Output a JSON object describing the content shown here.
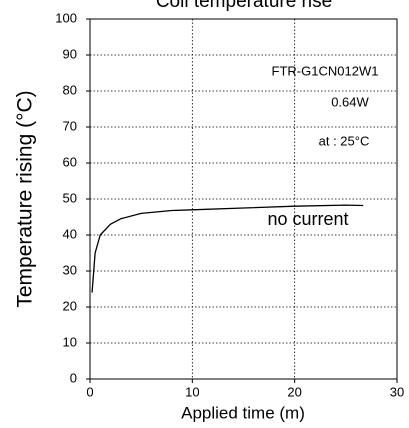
{
  "chart_data": {
    "type": "line",
    "title": "Coil temperature rise",
    "x": [
      0.2,
      0.5,
      1,
      2,
      3,
      5,
      8,
      10,
      15,
      20,
      25,
      26.7
    ],
    "series": [
      {
        "name": "no current",
        "color": "#000000",
        "values": [
          24,
          35,
          40,
          43,
          44.5,
          46,
          46.8,
          47,
          47.5,
          48,
          48.3,
          48.2
        ]
      }
    ],
    "xlabel": "Applied time (m)",
    "ylabel": "Temperature rising (°C)",
    "annotations": [
      "FTR-G1CN012W1",
      "0.64W",
      "at : 25°C"
    ],
    "xlim": [
      0,
      30
    ],
    "xticks": [
      0,
      10,
      20,
      30
    ],
    "ylim": [
      0,
      100
    ],
    "yticks": [
      0,
      10,
      20,
      30,
      40,
      50,
      60,
      70,
      80,
      90,
      100
    ],
    "grid": true
  }
}
